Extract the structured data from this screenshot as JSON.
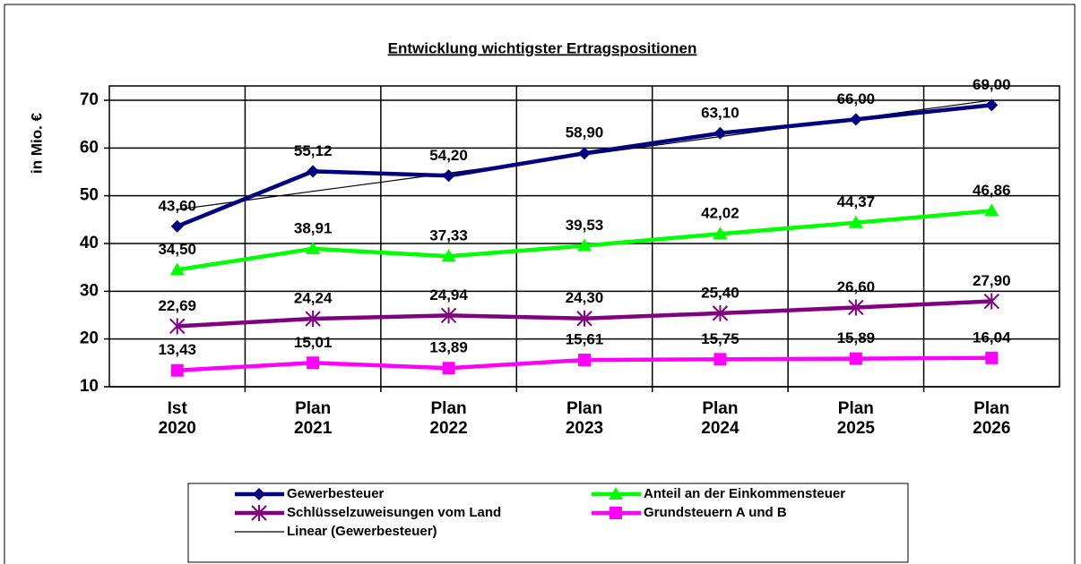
{
  "chart_data": {
    "type": "line",
    "title": "Entwicklung wichtigster Ertragspositionen",
    "y_label": "in Mio. €",
    "categories": [
      "Ist\n2020",
      "Plan\n2021",
      "Plan\n2022",
      "Plan\n2023",
      "Plan\n2024",
      "Plan\n2025",
      "Plan\n2026"
    ],
    "ylim": [
      10,
      73
    ],
    "yticks": [
      10,
      20,
      30,
      40,
      50,
      60,
      70
    ],
    "grid": true,
    "legend": "bottom",
    "series": [
      {
        "name": "Gewerbesteuer",
        "color": "#000080",
        "marker": "diamond",
        "values": [
          43.6,
          55.12,
          54.2,
          58.9,
          63.1,
          66.0,
          69.0
        ],
        "value_labels": [
          "43,60",
          "55,12",
          "54,20",
          "58,90",
          "63,10",
          "66,00",
          "69,00"
        ]
      },
      {
        "name": "Anteil an der Einkommensteuer",
        "color": "#00ff00",
        "marker": "triangle",
        "values": [
          34.5,
          38.91,
          37.33,
          39.53,
          42.02,
          44.37,
          46.86
        ],
        "value_labels": [
          "34,50",
          "38,91",
          "37,33",
          "39,53",
          "42,02",
          "44,37",
          "46,86"
        ]
      },
      {
        "name": "Schlüsselzuweisungen vom Land",
        "color": "#800080",
        "marker": "star",
        "values": [
          22.69,
          24.24,
          24.94,
          24.3,
          25.4,
          26.6,
          27.9
        ],
        "value_labels": [
          "22,69",
          "24,24",
          "24,94",
          "24,30",
          "25,40",
          "26,60",
          "27,90"
        ]
      },
      {
        "name": "Grundsteuern A und B",
        "color": "#ff00ff",
        "marker": "square",
        "values": [
          13.43,
          15.01,
          13.89,
          15.61,
          15.75,
          15.89,
          16.04
        ],
        "value_labels": [
          "13,43",
          "15,01",
          "13,89",
          "15,61",
          "15,75",
          "15,89",
          "16,04"
        ]
      },
      {
        "name": "Linear (Gewerbesteuer)",
        "color": "#000000",
        "marker": "none",
        "trend": true,
        "values": [
          47.11,
          50.93,
          54.74,
          58.56,
          62.38,
          66.19,
          70.01
        ]
      }
    ]
  }
}
